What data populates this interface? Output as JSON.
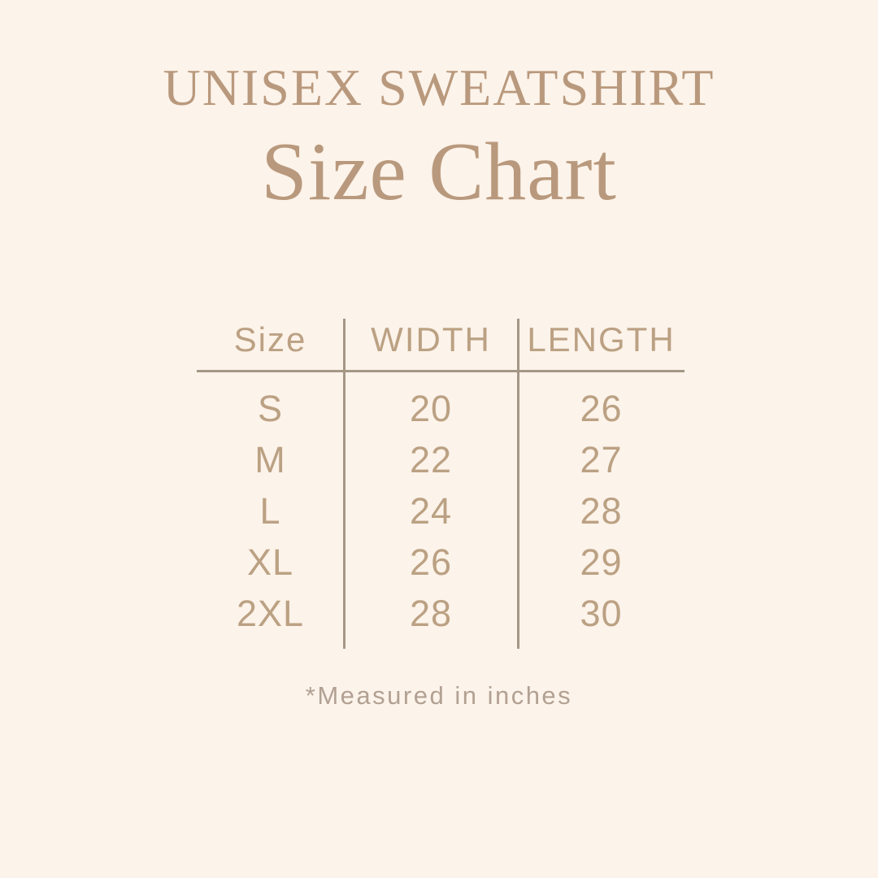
{
  "header": {
    "eyebrow": "UNISEX SWEATSHIRT",
    "title": "Size Chart"
  },
  "chart_data": {
    "type": "table",
    "title": "UNISEX SWEATSHIRT Size Chart",
    "columns": [
      "Size",
      "WIDTH",
      "LENGTH"
    ],
    "rows": [
      [
        "S",
        "20",
        "26"
      ],
      [
        "M",
        "22",
        "27"
      ],
      [
        "L",
        "24",
        "28"
      ],
      [
        "XL",
        "26",
        "29"
      ],
      [
        "2XL",
        "28",
        "30"
      ]
    ],
    "units": "inches",
    "note": "*Measured in inches"
  },
  "colors": {
    "background": "#fcf3ea",
    "heading": "#b9997d",
    "table_text": "#bba183",
    "rule": "#a59786",
    "note": "#b2a193"
  }
}
